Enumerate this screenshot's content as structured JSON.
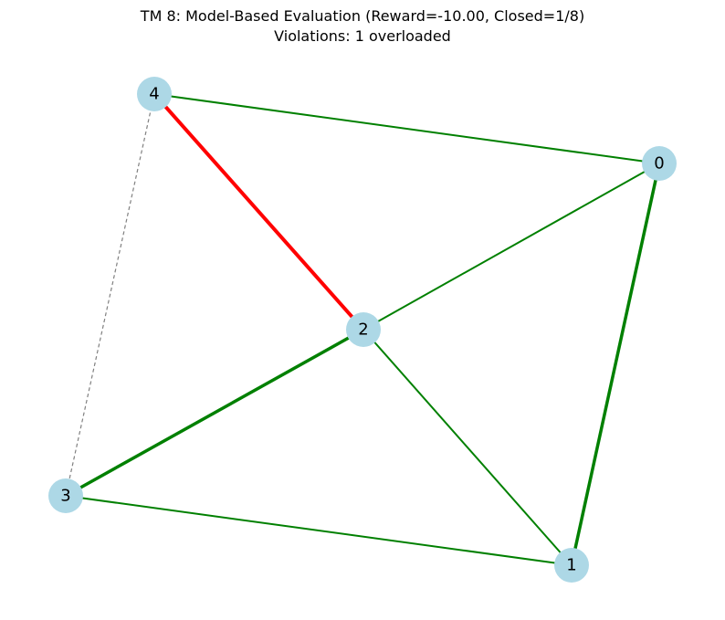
{
  "title": {
    "line1": "TM 8: Model-Based Evaluation (Reward=-10.00, Closed=1/8)",
    "line2": "Violations: 1 overloaded"
  },
  "colors": {
    "node_fill": "#add8e6",
    "edge_ok": "#008000",
    "edge_overloaded": "#ff0000",
    "edge_closed": "#808080"
  },
  "nodes": [
    {
      "id": "node-0",
      "label": "0"
    },
    {
      "id": "node-1",
      "label": "1"
    },
    {
      "id": "node-2",
      "label": "2"
    },
    {
      "id": "node-3",
      "label": "3"
    },
    {
      "id": "node-4",
      "label": "4"
    }
  ],
  "edges": [
    {
      "source": "4",
      "target": "0",
      "status": "normal"
    },
    {
      "source": "4",
      "target": "2",
      "status": "overloaded"
    },
    {
      "source": "4",
      "target": "3",
      "status": "closed"
    },
    {
      "source": "0",
      "target": "2",
      "status": "normal"
    },
    {
      "source": "0",
      "target": "1",
      "status": "heavy"
    },
    {
      "source": "2",
      "target": "3",
      "status": "heavy"
    },
    {
      "source": "2",
      "target": "1",
      "status": "normal"
    },
    {
      "source": "3",
      "target": "1",
      "status": "normal"
    }
  ]
}
